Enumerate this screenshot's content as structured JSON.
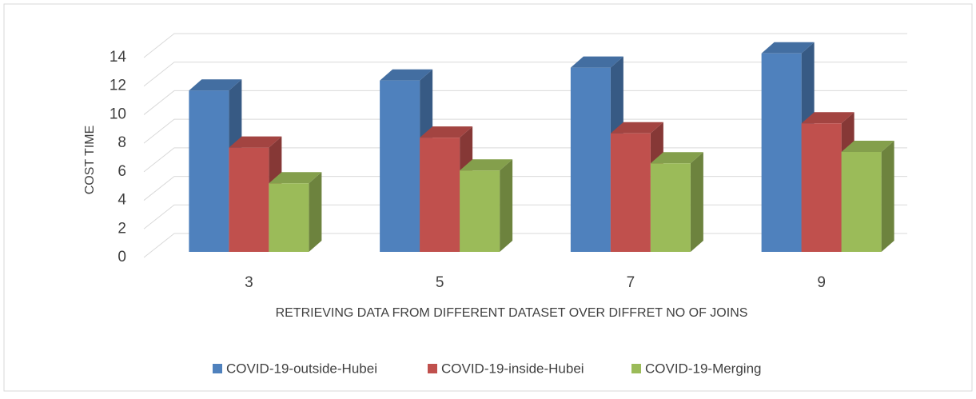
{
  "chart_data": {
    "type": "bar3d",
    "xlabel": "RETRIEVING DATA FROM DIFFERENT DATASET OVER DIFFRET NO OF JOINS",
    "ylabel": "COST TIME",
    "categories": [
      "3",
      "5",
      "7",
      "9"
    ],
    "series": [
      {
        "name": "COVID-19-outside-Hubei",
        "color": "#4f81bd",
        "values": [
          11.3,
          12.0,
          12.9,
          13.9
        ]
      },
      {
        "name": "COVID-19-inside-Hubei",
        "color": "#c0504d",
        "values": [
          7.3,
          8.0,
          8.3,
          9.0
        ]
      },
      {
        "name": "COVID-19-Merging",
        "color": "#9bbb59",
        "values": [
          4.8,
          5.7,
          6.2,
          7.0
        ]
      }
    ],
    "ylim": [
      0,
      14
    ],
    "yticks": [
      0,
      2,
      4,
      6,
      8,
      10,
      12,
      14
    ],
    "grid": true,
    "legend": "bottom"
  }
}
